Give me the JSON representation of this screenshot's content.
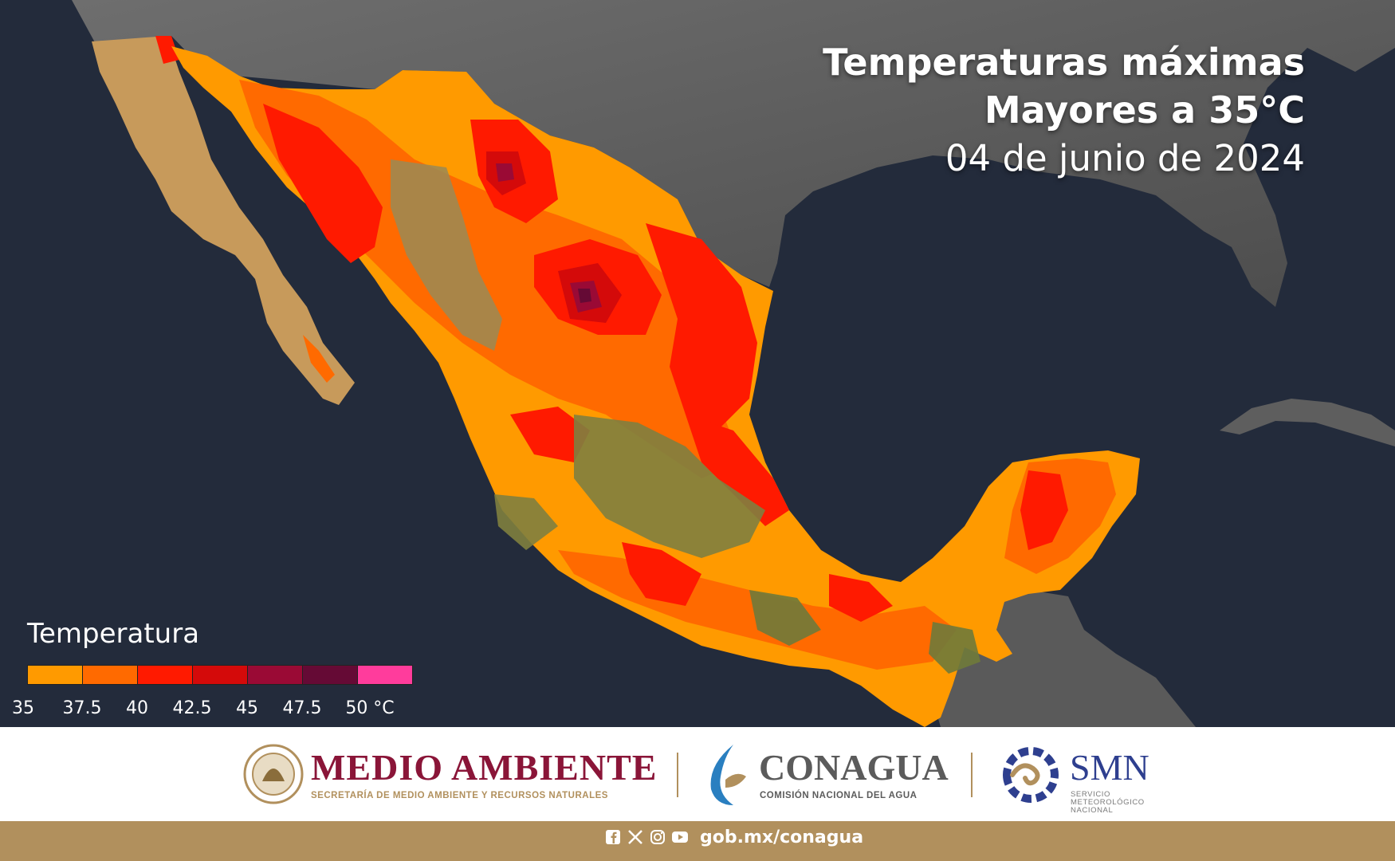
{
  "title": {
    "line1": "Temperaturas máximas",
    "line2": "Mayores a 35°C",
    "date": "04 de junio de 2024"
  },
  "legend": {
    "title": "Temperatura",
    "colors": [
      "#ff9a00",
      "#ff6a00",
      "#ff1a00",
      "#d40a0a",
      "#9a0a35",
      "#650a35",
      "#ff3c9c"
    ],
    "ticks": [
      "35",
      "37.5",
      "40",
      "42.5",
      "45",
      "47.5",
      "50 °C"
    ]
  },
  "footer": {
    "medio_ambiente": "MEDIO AMBIENTE",
    "medio_ambiente_sub": "SECRETARÍA DE MEDIO AMBIENTE Y RECURSOS NATURALES",
    "conagua": "CONAGUA",
    "conagua_sub": "COMISIÓN NACIONAL DEL AGUA",
    "smn": "SMN",
    "smn_sub": "SERVICIO METEOROLÓGICO NACIONAL",
    "website": "gob.mx/conagua",
    "social_icons": [
      "facebook-icon",
      "x-icon",
      "instagram-icon",
      "youtube-icon"
    ]
  },
  "colors": {
    "brand_guinda": "#8a1538",
    "brand_gold": "#b1905d",
    "conagua_gray": "#5b5b5b",
    "smn_blue": "#2e3f8f"
  }
}
